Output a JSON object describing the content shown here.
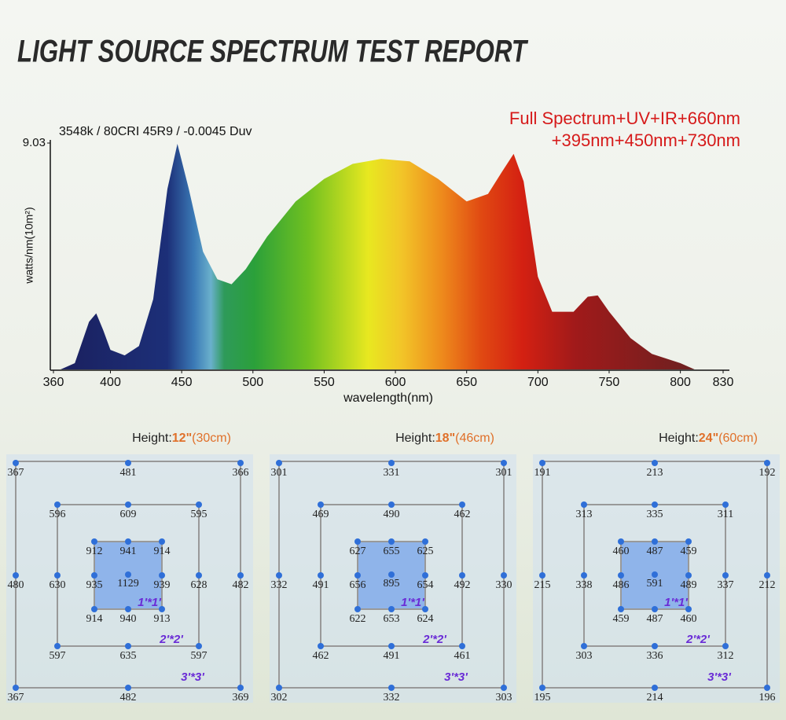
{
  "header": {
    "title": "LIGHT SOURCE SPECTRUM TEST REPORT"
  },
  "chart_data": {
    "type": "area",
    "subtitle": "3548k / 80CRI 45R9 / -0.0045 Duv",
    "annotations": [
      "Full Spectrum+UV+IR+660nm",
      "+395nm+450nm+730nm"
    ],
    "xlabel": "wavelength(nm)",
    "ylabel": "watts/nm(10m²)",
    "x": [
      365,
      375,
      385,
      390,
      395,
      400,
      410,
      420,
      430,
      440,
      447,
      455,
      465,
      475,
      485,
      495,
      510,
      530,
      550,
      570,
      590,
      610,
      630,
      650,
      665,
      675,
      683,
      690,
      700,
      710,
      725,
      735,
      742,
      750,
      765,
      780,
      800,
      810
    ],
    "values": [
      0,
      0.25,
      1.9,
      2.24,
      1.56,
      0.78,
      0.56,
      0.93,
      2.8,
      7.2,
      9.0,
      7.2,
      4.7,
      3.6,
      3.4,
      4.0,
      5.3,
      6.7,
      7.6,
      8.2,
      8.4,
      8.3,
      7.6,
      6.7,
      7.0,
      7.9,
      8.6,
      7.5,
      3.7,
      2.3,
      2.3,
      2.9,
      2.95,
      2.3,
      1.25,
      0.62,
      0.25,
      0
    ],
    "xlim": [
      360,
      830
    ],
    "xticks": [
      360,
      400,
      450,
      500,
      550,
      600,
      650,
      700,
      750,
      800,
      830
    ],
    "ylim": [
      0,
      9.03
    ],
    "yticks": [
      9.03
    ]
  },
  "ppfd_maps": [
    {
      "label": "Height:",
      "height": "12\"",
      "metric": "(30cm)",
      "outer": [
        367,
        481,
        366,
        480,
        482,
        367,
        482,
        369
      ],
      "middle": [
        596,
        609,
        595,
        630,
        628,
        597,
        635,
        597
      ],
      "inner": [
        912,
        941,
        914,
        935,
        939,
        914,
        940,
        913
      ],
      "center": 1129,
      "zones": [
        "1'*1'",
        "2'*2'",
        "3'*3'"
      ]
    },
    {
      "label": "Height:",
      "height": "18\"",
      "metric": "(46cm)",
      "outer": [
        301,
        331,
        301,
        332,
        330,
        302,
        332,
        303
      ],
      "middle": [
        469,
        490,
        462,
        491,
        492,
        462,
        491,
        461
      ],
      "inner": [
        627,
        655,
        625,
        656,
        654,
        622,
        653,
        624
      ],
      "center": 895,
      "zones": [
        "1'*1'",
        "2'*2'",
        "3'*3'"
      ]
    },
    {
      "label": "Height:",
      "height": "24\"",
      "metric": "(60cm)",
      "outer": [
        191,
        213,
        192,
        215,
        212,
        195,
        214,
        196
      ],
      "middle": [
        313,
        335,
        311,
        338,
        337,
        303,
        336,
        312
      ],
      "inner": [
        460,
        487,
        459,
        486,
        489,
        459,
        487,
        460
      ],
      "center": 591,
      "zones": [
        "1'*1'",
        "2'*2'",
        "3'*3'"
      ]
    }
  ]
}
